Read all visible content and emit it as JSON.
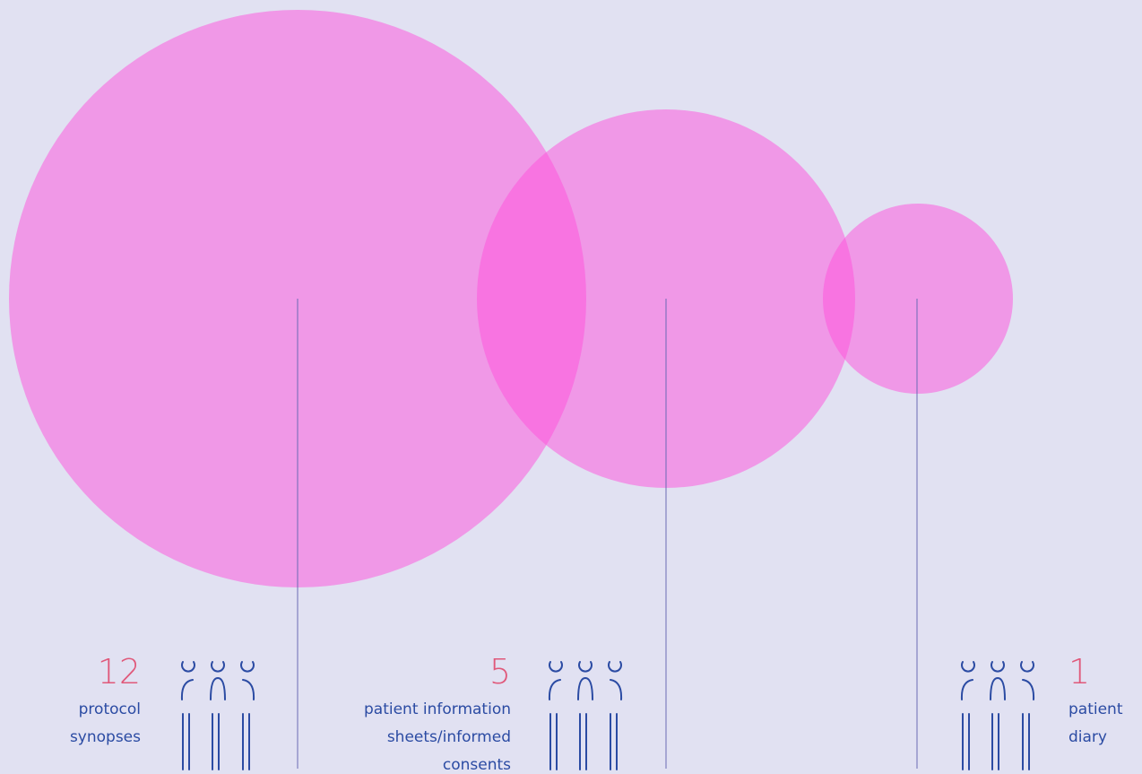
{
  "items": [
    {
      "value": 12,
      "lines": [
        "protocol",
        "synopses"
      ]
    },
    {
      "value": 5,
      "lines": [
        "patient information",
        "sheets/informed",
        "consents"
      ]
    },
    {
      "value": 1,
      "lines": [
        "patient",
        "diary"
      ]
    }
  ]
}
